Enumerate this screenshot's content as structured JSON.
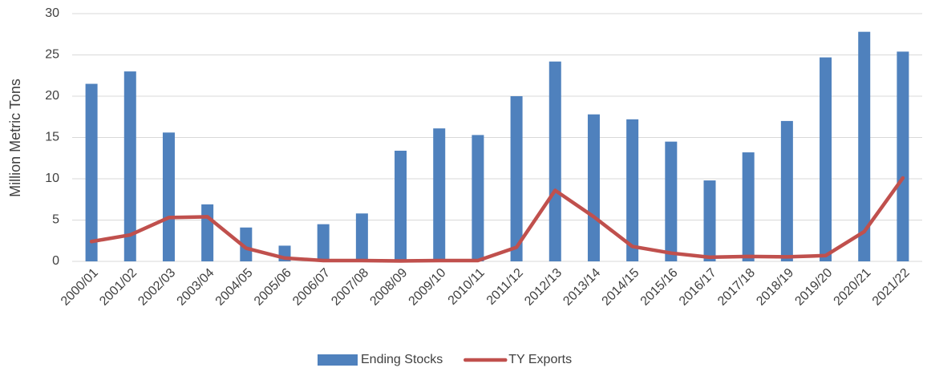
{
  "chart_data": {
    "type": "bar",
    "y_label": "Million Metric Tons",
    "categories": [
      "2000/01",
      "2001/02",
      "2002/03",
      "2003/04",
      "2004/05",
      "2005/06",
      "2006/07",
      "2007/08",
      "2008/09",
      "2009/10",
      "2010/11",
      "2011/12",
      "2012/13",
      "2013/14",
      "2014/15",
      "2015/16",
      "2016/17",
      "2017/18",
      "2018/19",
      "2019/20",
      "2020/21",
      "2021/22"
    ],
    "series": [
      {
        "name": "Ending Stocks",
        "type": "bar",
        "color": "#4f81bd",
        "values": [
          21.5,
          23,
          15.6,
          6.9,
          4.1,
          1.9,
          4.5,
          5.8,
          13.4,
          16.1,
          15.3,
          20,
          24.2,
          17.8,
          17.2,
          14.5,
          9.8,
          13.2,
          17,
          24.7,
          27.8,
          25.4
        ]
      },
      {
        "name": "TY Exports",
        "type": "line",
        "color": "#c0504d",
        "values": [
          2.4,
          3.2,
          5.3,
          5.4,
          1.6,
          0.4,
          0.1,
          0.1,
          0.05,
          0.1,
          0.1,
          1.7,
          8.6,
          5.4,
          1.8,
          1.0,
          0.5,
          0.6,
          0.55,
          0.7,
          3.6,
          10.1
        ]
      }
    ],
    "ylim": [
      0,
      30
    ],
    "yticks": [
      0,
      5,
      10,
      15,
      20,
      25,
      30
    ],
    "grid": true,
    "legend": "bottom"
  }
}
